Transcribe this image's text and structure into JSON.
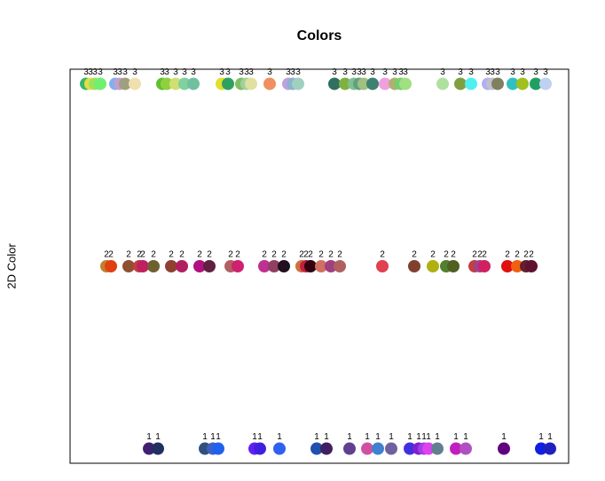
{
  "chart_data": {
    "type": "scatter",
    "title": "Colors",
    "ylabel": "2D Color",
    "x": [
      18,
      23,
      28,
      34,
      51,
      56,
      62,
      73,
      104,
      109,
      119,
      129,
      139,
      171,
      178,
      193,
      199,
      204,
      225,
      246,
      251,
      257,
      298,
      310,
      320,
      326,
      331,
      341,
      355,
      366,
      373,
      378,
      420,
      440,
      452,
      471,
      476,
      482,
      499,
      510,
      525,
      536,
      41,
      46,
      66,
      78,
      82,
      94,
      114,
      126,
      146,
      157,
      181,
      189,
      219,
      230,
      241,
      261,
      266,
      271,
      283,
      294,
      304,
      352,
      388,
      409,
      424,
      432,
      456,
      462,
      467,
      493,
      504,
      514,
      520,
      89,
      99,
      152,
      161,
      167,
      208,
      214,
      236,
      278,
      289,
      315,
      335,
      347,
      362,
      383,
      393,
      399,
      404,
      414,
      435,
      446,
      489,
      531,
      541
    ],
    "values": [
      3,
      3,
      3,
      3,
      3,
      3,
      3,
      3,
      3,
      3,
      3,
      3,
      3,
      3,
      3,
      3,
      3,
      3,
      3,
      3,
      3,
      3,
      3,
      3,
      3,
      3,
      3,
      3,
      3,
      3,
      3,
      3,
      3,
      3,
      3,
      3,
      3,
      3,
      3,
      3,
      3,
      3,
      2,
      2,
      2,
      2,
      2,
      2,
      2,
      2,
      2,
      2,
      2,
      2,
      2,
      2,
      2,
      2,
      2,
      2,
      2,
      2,
      2,
      2,
      2,
      2,
      2,
      2,
      2,
      2,
      2,
      2,
      2,
      2,
      2,
      1,
      1,
      1,
      1,
      1,
      1,
      1,
      1,
      1,
      1,
      1,
      1,
      1,
      1,
      1,
      1,
      1,
      1,
      1,
      1,
      1,
      1,
      1,
      1
    ],
    "colors": [
      "#3cb371",
      "#e0e040",
      "#a0e060",
      "#70f070",
      "#80b0f0",
      "#c0a0d0",
      "#a0a080",
      "#f0e0b0",
      "#60c030",
      "#90d040",
      "#d0e070",
      "#80d0a0",
      "#70c0a0",
      "#e0e030",
      "#30a060",
      "#80c060",
      "#a0d0a0",
      "#e0e0a0",
      "#f09060",
      "#c0a0e0",
      "#90b0d0",
      "#a0d0c0",
      "#307060",
      "#80b040",
      "#80c090",
      "#60a080",
      "#a0c080",
      "#408070",
      "#f0a0e0",
      "#b0b070",
      "#70d070",
      "#a0e080",
      "#b0e0a0",
      "#80a040",
      "#50f0f0",
      "#b0b0f0",
      "#c0c0d0",
      "#808060",
      "#30c0c0",
      "#a0c020",
      "#20a060",
      "#c0d0f0",
      "#c08030",
      "#e04010",
      "#905030",
      "#c04040",
      "#c02060",
      "#706030",
      "#904030",
      "#b02060",
      "#b01080",
      "#602040",
      "#b06060",
      "#d02070",
      "#c03090",
      "#904060",
      "#201020",
      "#d07040",
      "#c02040",
      "#300010",
      "#d07060",
      "#a04080",
      "#b06060",
      "#e04050",
      "#804030",
      "#b0b010",
      "#508030",
      "#506020",
      "#c04040",
      "#a04090",
      "#d02060",
      "#e01010",
      "#f06010",
      "#602030",
      "#601030",
      "#402070",
      "#203060",
      "#305080",
      "#4060c0",
      "#2060f0",
      "#6020f0",
      "#4020e0",
      "#3060f0",
      "#2050b0",
      "#402060",
      "#604090",
      "#d050a0",
      "#4080d0",
      "#7060a0",
      "#4030e0",
      "#8020d0",
      "#a040e0",
      "#e040f0",
      "#608090",
      "#c020c0",
      "#b050c0",
      "#600080",
      "#1020e0",
      "#2020c0"
    ],
    "xlim": [
      0,
      562
    ],
    "ylim": [
      0.92,
      3.08
    ]
  }
}
